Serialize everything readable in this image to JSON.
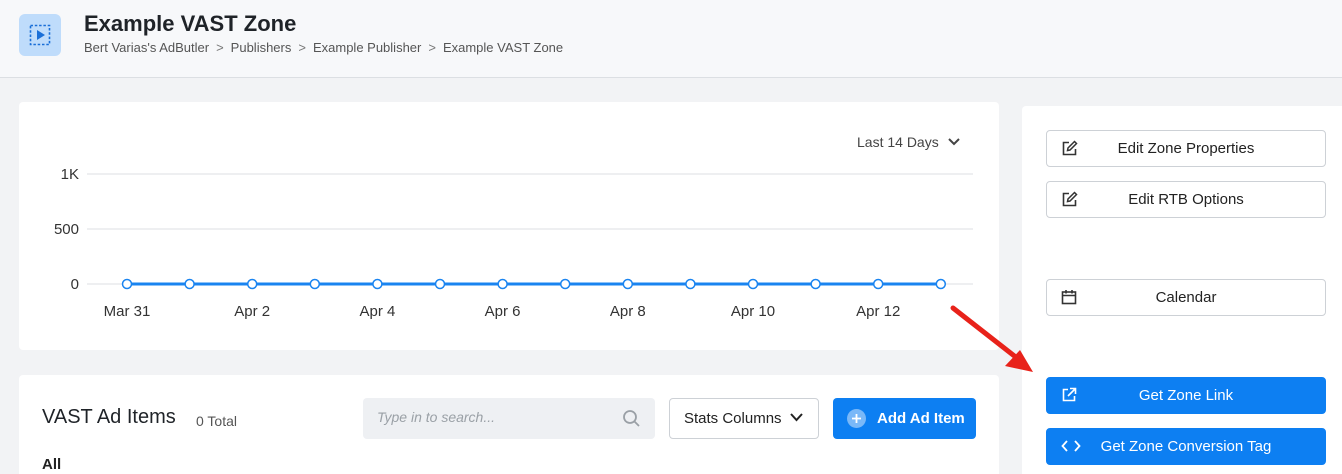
{
  "header": {
    "title": "Example VAST Zone",
    "breadcrumb": [
      "Bert Varias's AdButler",
      "Publishers",
      "Example Publisher",
      "Example VAST Zone"
    ],
    "breadcrumb_separator": ">"
  },
  "chart": {
    "range_label": "Last 14 Days"
  },
  "chart_data": {
    "type": "line",
    "x": [
      "Mar 31",
      "Apr 1",
      "Apr 2",
      "Apr 3",
      "Apr 4",
      "Apr 5",
      "Apr 6",
      "Apr 7",
      "Apr 8",
      "Apr 9",
      "Apr 10",
      "Apr 11",
      "Apr 12",
      "Apr 13"
    ],
    "x_tick_labels": [
      "Mar 31",
      "Apr 2",
      "Apr 4",
      "Apr 6",
      "Apr 8",
      "Apr 10",
      "Apr 12"
    ],
    "series": [
      {
        "values": [
          0,
          0,
          0,
          0,
          0,
          0,
          0,
          0,
          0,
          0,
          0,
          0,
          0,
          0
        ],
        "color": "#1a84f0"
      }
    ],
    "y_ticks": [
      "0",
      "500",
      "1K"
    ],
    "ylim": [
      0,
      1000
    ],
    "grid": true
  },
  "items": {
    "title": "VAST Ad Items",
    "total": "0 Total",
    "search_placeholder": "Type in to search...",
    "stats_columns_label": "Stats Columns",
    "add_label": "Add Ad Item",
    "filter_label": "All"
  },
  "sidebar": {
    "edit_zone_label": "Edit Zone Properties",
    "edit_rtb_label": "Edit RTB Options",
    "calendar_label": "Calendar",
    "zone_link_label": "Get Zone Link",
    "conversion_tag_label": "Get Zone Conversion Tag"
  },
  "colors": {
    "accent": "#0d7ff2",
    "annotation_arrow": "#e8221a"
  }
}
